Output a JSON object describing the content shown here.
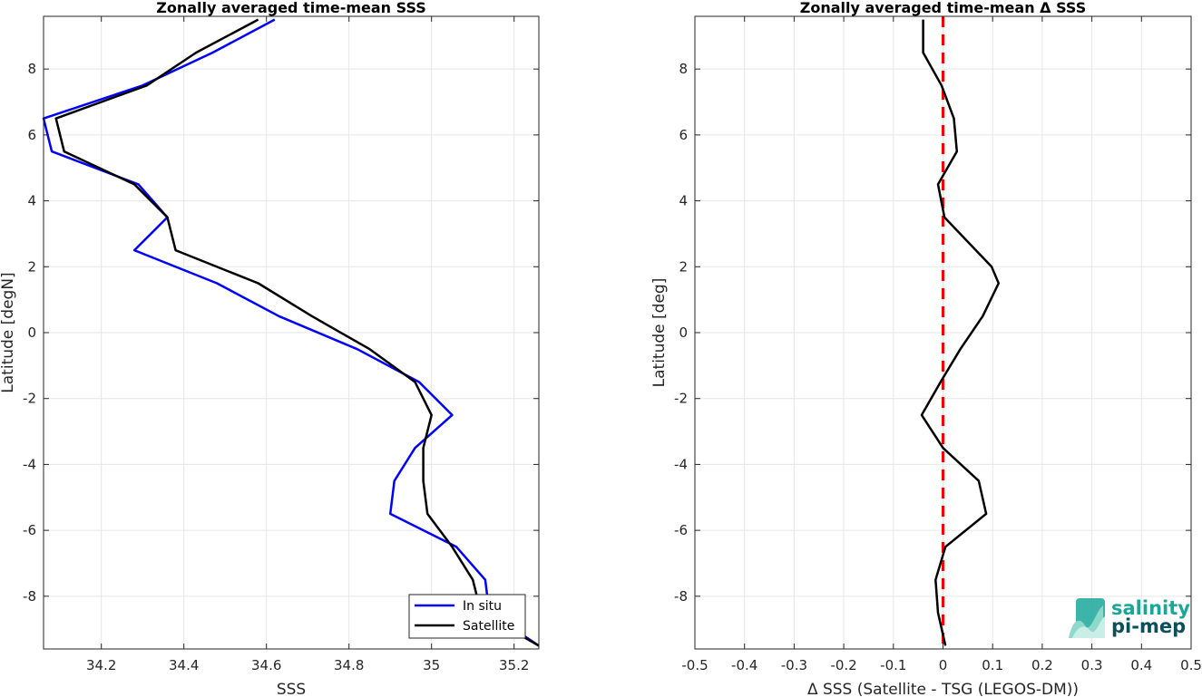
{
  "chart_data": [
    {
      "type": "line",
      "title": "Zonally averaged time-mean SSS",
      "xlabel": "SSS",
      "ylabel": "Latitude [degN]",
      "xlim": [
        34.06,
        35.26
      ],
      "ylim": [
        -9.6,
        9.6
      ],
      "xticks": [
        34.2,
        34.4,
        34.6,
        34.8,
        35,
        35.2
      ],
      "xtick_labels": [
        "34.2",
        "34.4",
        "34.6",
        "34.8",
        "35",
        "35.2"
      ],
      "yticks": [
        -8,
        -6,
        -4,
        -2,
        0,
        2,
        4,
        6,
        8
      ],
      "ytick_labels": [
        "-8",
        "-6",
        "-4",
        "-2",
        "0",
        "2",
        "4",
        "6",
        "8"
      ],
      "grid": true,
      "legend_position": "bottom-right",
      "series": [
        {
          "name": "In situ",
          "color": "#0000ff",
          "points": [
            {
              "x": 35.26,
              "y": -9.5
            },
            {
              "x": 35.14,
              "y": -8.5
            },
            {
              "x": 35.13,
              "y": -7.5
            },
            {
              "x": 35.06,
              "y": -6.5
            },
            {
              "x": 34.9,
              "y": -5.5
            },
            {
              "x": 34.91,
              "y": -4.5
            },
            {
              "x": 34.96,
              "y": -3.5
            },
            {
              "x": 35.05,
              "y": -2.5
            },
            {
              "x": 34.97,
              "y": -1.5
            },
            {
              "x": 34.82,
              "y": -0.5
            },
            {
              "x": 34.63,
              "y": 0.5
            },
            {
              "x": 34.48,
              "y": 1.5
            },
            {
              "x": 34.28,
              "y": 2.5
            },
            {
              "x": 34.36,
              "y": 3.5
            },
            {
              "x": 34.29,
              "y": 4.5
            },
            {
              "x": 34.08,
              "y": 5.5
            },
            {
              "x": 34.06,
              "y": 6.5
            },
            {
              "x": 34.3,
              "y": 7.5
            },
            {
              "x": 34.47,
              "y": 8.5
            },
            {
              "x": 34.62,
              "y": 9.5
            }
          ]
        },
        {
          "name": "Satellite",
          "color": "#000000",
          "points": [
            {
              "x": 35.26,
              "y": -9.5
            },
            {
              "x": 35.12,
              "y": -8.5
            },
            {
              "x": 35.1,
              "y": -7.5
            },
            {
              "x": 35.05,
              "y": -6.5
            },
            {
              "x": 34.99,
              "y": -5.5
            },
            {
              "x": 34.98,
              "y": -4.5
            },
            {
              "x": 34.98,
              "y": -3.5
            },
            {
              "x": 35.0,
              "y": -2.5
            },
            {
              "x": 34.96,
              "y": -1.5
            },
            {
              "x": 34.85,
              "y": -0.5
            },
            {
              "x": 34.71,
              "y": 0.5
            },
            {
              "x": 34.58,
              "y": 1.5
            },
            {
              "x": 34.38,
              "y": 2.5
            },
            {
              "x": 34.36,
              "y": 3.5
            },
            {
              "x": 34.28,
              "y": 4.5
            },
            {
              "x": 34.11,
              "y": 5.5
            },
            {
              "x": 34.09,
              "y": 6.5
            },
            {
              "x": 34.31,
              "y": 7.5
            },
            {
              "x": 34.43,
              "y": 8.5
            },
            {
              "x": 34.58,
              "y": 9.5
            }
          ]
        }
      ]
    },
    {
      "type": "line",
      "title": "Zonally averaged time-mean Δ SSS",
      "xlabel": "Δ SSS (Satellite - TSG (LEGOS-DM))",
      "ylabel": "Latitude [deg]",
      "xlim": [
        -0.5,
        0.5
      ],
      "ylim": [
        -9.6,
        9.6
      ],
      "xticks": [
        -0.5,
        -0.4,
        -0.3,
        -0.2,
        -0.1,
        0,
        0.1,
        0.2,
        0.3,
        0.4,
        0.5
      ],
      "xtick_labels": [
        "-0.5",
        "-0.4",
        "-0.3",
        "-0.2",
        "-0.1",
        "0",
        "0.1",
        "0.2",
        "0.3",
        "0.4",
        "0.5"
      ],
      "yticks": [
        -8,
        -6,
        -4,
        -2,
        0,
        2,
        4,
        6,
        8
      ],
      "ytick_labels": [
        "-8",
        "-6",
        "-4",
        "-2",
        "0",
        "2",
        "4",
        "6",
        "8"
      ],
      "grid": true,
      "reference_line": {
        "x": 0,
        "color": "#ff0000",
        "style": "dashed"
      },
      "series": [
        {
          "color": "#000000",
          "points": [
            {
              "x": 0.005,
              "y": -9.5
            },
            {
              "x": -0.01,
              "y": -8.5
            },
            {
              "x": -0.015,
              "y": -7.5
            },
            {
              "x": 0.005,
              "y": -6.5
            },
            {
              "x": 0.087,
              "y": -5.5
            },
            {
              "x": 0.072,
              "y": -4.5
            },
            {
              "x": 0.0,
              "y": -3.5
            },
            {
              "x": -0.043,
              "y": -2.5
            },
            {
              "x": -0.005,
              "y": -1.5
            },
            {
              "x": 0.035,
              "y": -0.5
            },
            {
              "x": 0.08,
              "y": 0.5
            },
            {
              "x": 0.112,
              "y": 1.5
            },
            {
              "x": 0.098,
              "y": 2.0
            },
            {
              "x": 0.003,
              "y": 3.5
            },
            {
              "x": -0.01,
              "y": 4.5
            },
            {
              "x": 0.028,
              "y": 5.5
            },
            {
              "x": 0.022,
              "y": 6.5
            },
            {
              "x": -0.003,
              "y": 7.5
            },
            {
              "x": -0.04,
              "y": 8.5
            },
            {
              "x": -0.04,
              "y": 9.5
            }
          ]
        }
      ]
    }
  ],
  "logo": {
    "line1": "salinity",
    "line2": "pi-mep",
    "color_primary": "#1aa79a",
    "color_secondary": "#0b4f5c"
  }
}
